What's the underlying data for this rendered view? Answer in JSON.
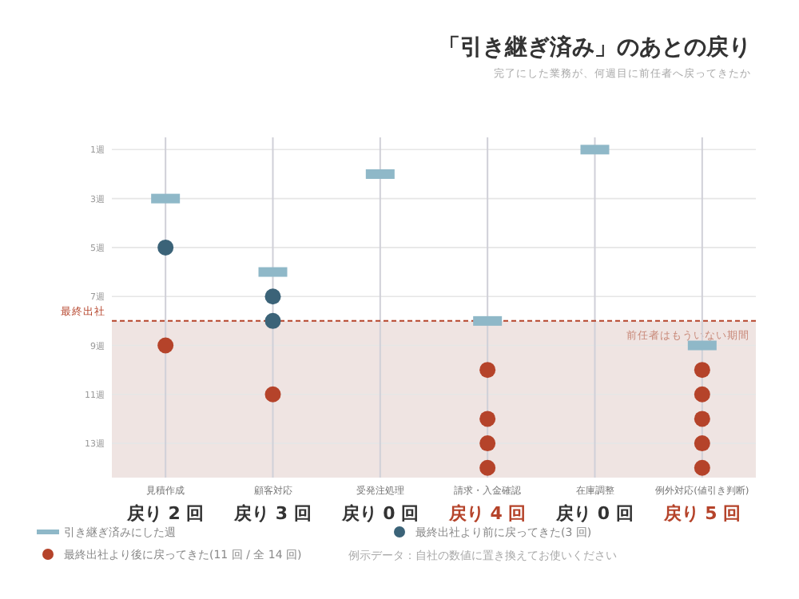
{
  "chart_data": {
    "type": "scatter",
    "title": "「引き継ぎ済み」のあとの戻り",
    "subtitle": "完了にした業務が、何週目に前任者へ戻ってきたか",
    "categories": [
      "見積作成",
      "顧客対応",
      "受発注処理",
      "請求・入金確認",
      "在庫調整",
      "例外対応(値引き判断)"
    ],
    "series": [
      {
        "name": "引き継ぎ済みにした週",
        "color": "#8fb8c8",
        "marker": "square",
        "x": [
          "見積作成",
          "顧客対応",
          "受発注処理",
          "請求・入金確認",
          "在庫調整",
          "例外対応(値引き判断)"
        ],
        "values": [
          3,
          6,
          2,
          8,
          1,
          9
        ]
      },
      {
        "name": "最終出社より前に戻ってきた(3 回)",
        "color": "#3b6378",
        "marker": "circle",
        "x": [
          "見積作成",
          "顧客対応",
          "顧客対応"
        ],
        "values": [
          5,
          7,
          8
        ]
      },
      {
        "name": "最終出社より後に戻ってきた(11 回 / 全 14 回)",
        "color": "#b5432a",
        "marker": "circle",
        "x": [
          "見積作成",
          "顧客対応",
          "請求・入金確認",
          "請求・入金確認",
          "請求・入金確認",
          "請求・入金確認",
          "例外対応(値引き判断)",
          "例外対応(値引き判断)",
          "例外対応(値引き判断)",
          "例外対応(値引き判断)",
          "例外対応(値引き判断)"
        ],
        "values": [
          9,
          11,
          10,
          12,
          13,
          14,
          10,
          11,
          12,
          13,
          14
        ]
      }
    ],
    "ylim": [
      14.4,
      0.5
    ],
    "yticks": [
      {
        "value": 1,
        "label": "1週"
      },
      {
        "value": 3,
        "label": "3週"
      },
      {
        "value": 5,
        "label": "5週"
      },
      {
        "value": 7,
        "label": "7週"
      },
      {
        "value": 9,
        "label": "9週"
      },
      {
        "value": 11,
        "label": "11週"
      },
      {
        "value": 13,
        "label": "13週"
      }
    ],
    "grid": true,
    "legend": "bottom left",
    "ref_lines": [
      {
        "axis": "y",
        "value": 8,
        "label": "最終出社",
        "color": "#b5432a",
        "line_style": "dashed"
      }
    ],
    "bands": [
      {
        "axis": "y",
        "from": 8,
        "to": 14.4,
        "label": "前任者はもういない期間",
        "color": "#e8d8d5"
      }
    ],
    "annotations": [
      "戻り 2 回",
      "戻り 3 回",
      "戻り 0 回",
      "戻り 4 回",
      "戻り 0 回",
      "戻り 5 回",
      "例示データ：自社の数値に置き換えてお使いください"
    ]
  }
}
